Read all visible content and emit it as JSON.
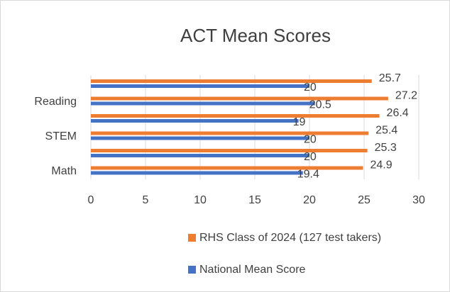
{
  "chart_data": {
    "type": "bar",
    "orientation": "horizontal",
    "title": "ACT Mean Scores",
    "categories": [
      "Math",
      null,
      "STEM",
      null,
      "Reading",
      null
    ],
    "series": [
      {
        "name": "RHS Class of 2024 (127 test takers)",
        "color": "#ed7d31",
        "values": [
          24.9,
          25.3,
          25.4,
          26.4,
          27.2,
          25.7
        ]
      },
      {
        "name": "National Mean Score",
        "color": "#4472c4",
        "values": [
          19.4,
          20,
          20,
          19,
          20.5,
          20
        ]
      }
    ],
    "xlim": [
      0,
      30
    ],
    "xticks": [
      0,
      5,
      10,
      15,
      20,
      25,
      30
    ],
    "grid": true,
    "legend": "bottom"
  }
}
